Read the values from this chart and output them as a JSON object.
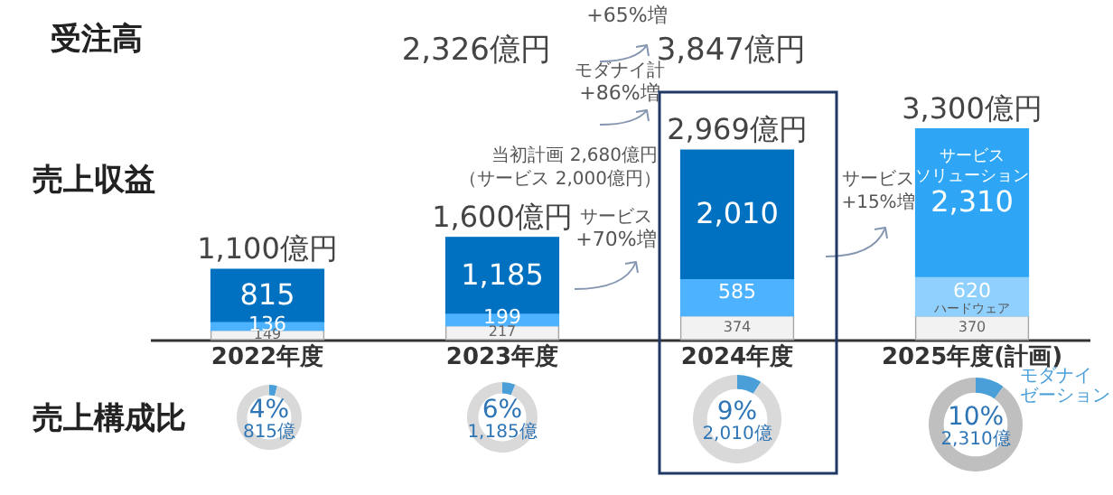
{
  "chart_data": [
    {
      "type": "bar",
      "stacked": true,
      "data_labels": true,
      "categories": [
        "2022年度",
        "2023年度",
        "2024年度",
        "2025年度(計画)"
      ],
      "series": [
        {
          "name": "ハードウェア",
          "color": "#f2f2f2",
          "values": [
            149,
            217,
            374,
            370
          ]
        },
        {
          "colors": [
            "#4db2ff",
            "#4db2ff",
            "#4db2ff",
            "#8fd0ff"
          ],
          "values": [
            136,
            199,
            585,
            620
          ]
        },
        {
          "name": "サービスソリューション",
          "colors": [
            "#0070c0",
            "#0070c0",
            "#0070c0",
            "#2ea6f5"
          ],
          "values": [
            815,
            1185,
            2010,
            2310
          ],
          "value_labels": [
            "815",
            "1,185",
            "2,010",
            "2,310"
          ]
        }
      ],
      "totals": [
        "1,100億円",
        "1,600億円",
        "2,969億円",
        "3,300億円"
      ],
      "annotations": [
        "受注高",
        "2,326億円",
        "+65%増",
        "3,847億円",
        "モダナイ計",
        "+86%増",
        "当初計画 2,680億円",
        "（サービス 2,000億円）",
        "売上収益",
        "サービス",
        "+70%増",
        "サービス",
        "+15%増",
        "売上構成比"
      ]
    },
    {
      "type": "donut",
      "categories": [
        null,
        null
      ],
      "values": [
        4,
        96
      ],
      "colors": [
        "#4a9fd8",
        "#d9d9d9"
      ],
      "value_labels": [
        "4%",
        null
      ],
      "annotations": [
        "815億"
      ]
    },
    {
      "type": "donut",
      "categories": [
        null,
        null
      ],
      "values": [
        6,
        94
      ],
      "colors": [
        "#4a9fd8",
        "#d9d9d9"
      ],
      "value_labels": [
        "6%",
        null
      ],
      "annotations": [
        "1,185億"
      ]
    },
    {
      "type": "donut",
      "categories": [
        null,
        null
      ],
      "values": [
        9,
        91
      ],
      "colors": [
        "#4a9fd8",
        "#d9d9d9"
      ],
      "value_labels": [
        "9%",
        null
      ],
      "annotations": [
        "2,010億"
      ]
    },
    {
      "type": "donut",
      "categories": [
        "モダナイゼーション",
        null
      ],
      "values": [
        10,
        90
      ],
      "colors": [
        "#4a9fd8",
        "#bfbfbf"
      ],
      "value_labels": [
        "10%",
        null
      ],
      "annotations": [
        "2,310億"
      ]
    }
  ]
}
